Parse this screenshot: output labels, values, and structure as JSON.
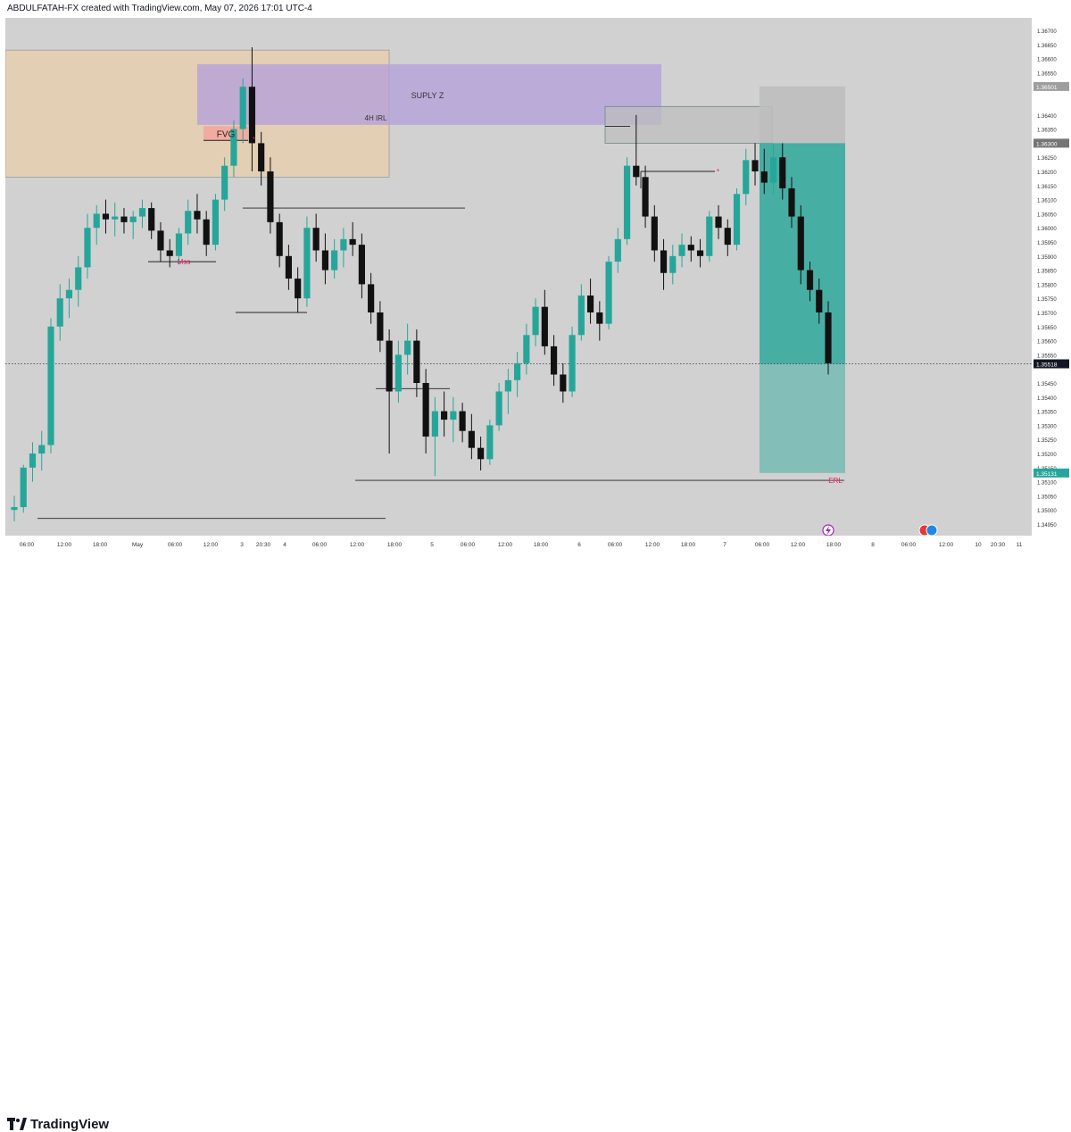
{
  "header": {
    "title": "ABDULFATAH-FX created with TradingView.com, May 07, 2026 17:01 UTC-4"
  },
  "footer": {
    "brand": "TradingView",
    "logo_icon": "tradingview-logo-icon"
  },
  "colors": {
    "background": "#d1d1d1",
    "candle": "#26a69a",
    "candle_down": "#111111",
    "fvg_zone": "#f1a9a0",
    "supply_zone": "#b39ddb",
    "irl_zone": "#e6cfae",
    "target_zone": "#26a69a",
    "stop_zone": "#bdbdbd",
    "label_pink": "#e91e63"
  },
  "chart_data": {
    "type": "candlestick",
    "price_ticks": [
      "1.36700",
      "1.36650",
      "1.36600",
      "1.36550",
      "1.36400",
      "1.36350",
      "1.36250",
      "1.36200",
      "1.36150",
      "1.36100",
      "1.36050",
      "1.36000",
      "1.35950",
      "1.35900",
      "1.35850",
      "1.35800",
      "1.35750",
      "1.35700",
      "1.35650",
      "1.35600",
      "1.35550",
      "1.35450",
      "1.35400",
      "1.35350",
      "1.35300",
      "1.35250",
      "1.35200",
      "1.35150",
      "1.35100",
      "1.35050",
      "1.35000",
      "1.34950"
    ],
    "price_badges": [
      {
        "label": "1.36501",
        "style": "gray"
      },
      {
        "label": "1.36300",
        "style": "gray-dark"
      },
      {
        "label": "1.35518",
        "style": "dark"
      },
      {
        "label": "1.35131",
        "style": "green"
      }
    ],
    "time_ticks": [
      "06:00",
      "12:00",
      "18:00",
      "May",
      "06:00",
      "12:00",
      "3",
      "20:30",
      "4",
      "06:00",
      "12:00",
      "18:00",
      "5",
      "06:00",
      "12:00",
      "18:00",
      "6",
      "06:00",
      "12:00",
      "18:00",
      "7",
      "06:00",
      "12:00",
      "18:00",
      "8",
      "06:00",
      "12:00",
      "10",
      "20:30",
      "11"
    ],
    "annotations": [
      {
        "text": "FVG",
        "kind": "zone-label"
      },
      {
        "text": "SUPLY Z",
        "kind": "zone-label"
      },
      {
        "text": "4H IRL",
        "kind": "zone-label"
      },
      {
        "text": "Mss",
        "kind": "structure"
      },
      {
        "text": "ERL",
        "kind": "liquidity"
      }
    ],
    "zones": [
      {
        "name": "4H IRL",
        "low": 1.3618,
        "high": 1.3663
      },
      {
        "name": "SUPLY Z",
        "low": 1.36365,
        "high": 1.3658
      },
      {
        "name": "FVG",
        "low": 1.3631,
        "high": 1.3636
      },
      {
        "name": "stop",
        "low": 1.363,
        "high": 1.36501
      },
      {
        "name": "target",
        "low": 1.35131,
        "high": 1.363
      }
    ],
    "levels": [
      {
        "name": "ERL",
        "price": 1.35105
      },
      {
        "name": "current",
        "price": 1.35518
      },
      {
        "name": "low-sweep",
        "price": 1.3497
      }
    ],
    "ohlc": [
      [
        1.35,
        1.3505,
        1.3496,
        1.3501
      ],
      [
        1.3501,
        1.3516,
        1.3499,
        1.3515
      ],
      [
        1.3515,
        1.3524,
        1.351,
        1.352
      ],
      [
        1.352,
        1.3528,
        1.3514,
        1.3523
      ],
      [
        1.3523,
        1.3568,
        1.352,
        1.3565
      ],
      [
        1.3565,
        1.358,
        1.356,
        1.3575
      ],
      [
        1.3575,
        1.3582,
        1.3568,
        1.3578
      ],
      [
        1.3578,
        1.359,
        1.3572,
        1.3586
      ],
      [
        1.3586,
        1.3605,
        1.3582,
        1.36
      ],
      [
        1.36,
        1.3608,
        1.3594,
        1.3605
      ],
      [
        1.3605,
        1.361,
        1.3598,
        1.3603
      ],
      [
        1.3603,
        1.3609,
        1.3597,
        1.3604
      ],
      [
        1.3604,
        1.3607,
        1.3598,
        1.3602
      ],
      [
        1.3602,
        1.3606,
        1.3596,
        1.3604
      ],
      [
        1.3604,
        1.361,
        1.36,
        1.3607
      ],
      [
        1.3607,
        1.3609,
        1.3596,
        1.3599
      ],
      [
        1.3599,
        1.3602,
        1.3588,
        1.3592
      ],
      [
        1.3592,
        1.3596,
        1.3586,
        1.359
      ],
      [
        1.359,
        1.36,
        1.3587,
        1.3598
      ],
      [
        1.3598,
        1.361,
        1.3594,
        1.3606
      ],
      [
        1.3606,
        1.3612,
        1.3598,
        1.3603
      ],
      [
        1.3603,
        1.3606,
        1.359,
        1.3594
      ],
      [
        1.3594,
        1.3612,
        1.3592,
        1.361
      ],
      [
        1.361,
        1.3625,
        1.3606,
        1.3622
      ],
      [
        1.3622,
        1.3638,
        1.3618,
        1.3635
      ],
      [
        1.3635,
        1.3653,
        1.363,
        1.365
      ],
      [
        1.365,
        1.3664,
        1.362,
        1.363
      ],
      [
        1.363,
        1.3634,
        1.3615,
        1.362
      ],
      [
        1.362,
        1.3625,
        1.3598,
        1.3602
      ],
      [
        1.3602,
        1.3605,
        1.3586,
        1.359
      ],
      [
        1.359,
        1.3594,
        1.3578,
        1.3582
      ],
      [
        1.3582,
        1.3586,
        1.357,
        1.3575
      ],
      [
        1.3575,
        1.3604,
        1.3572,
        1.36
      ],
      [
        1.36,
        1.3605,
        1.3588,
        1.3592
      ],
      [
        1.3592,
        1.3598,
        1.358,
        1.3585
      ],
      [
        1.3585,
        1.3596,
        1.3582,
        1.3592
      ],
      [
        1.3592,
        1.36,
        1.3586,
        1.3596
      ],
      [
        1.3596,
        1.3602,
        1.359,
        1.3594
      ],
      [
        1.3594,
        1.3598,
        1.3575,
        1.358
      ],
      [
        1.358,
        1.3584,
        1.3566,
        1.357
      ],
      [
        1.357,
        1.3574,
        1.3556,
        1.356
      ],
      [
        1.356,
        1.3564,
        1.352,
        1.3542
      ],
      [
        1.3542,
        1.356,
        1.3538,
        1.3555
      ],
      [
        1.3555,
        1.3566,
        1.3548,
        1.356
      ],
      [
        1.356,
        1.3564,
        1.354,
        1.3545
      ],
      [
        1.3545,
        1.355,
        1.352,
        1.3526
      ],
      [
        1.3526,
        1.354,
        1.3512,
        1.3535
      ],
      [
        1.3535,
        1.3542,
        1.3526,
        1.3532
      ],
      [
        1.3532,
        1.354,
        1.3524,
        1.3535
      ],
      [
        1.3535,
        1.3538,
        1.3524,
        1.3528
      ],
      [
        1.3528,
        1.3534,
        1.3518,
        1.3522
      ],
      [
        1.3522,
        1.3526,
        1.3514,
        1.3518
      ],
      [
        1.3518,
        1.3532,
        1.3516,
        1.353
      ],
      [
        1.353,
        1.3545,
        1.3528,
        1.3542
      ],
      [
        1.3542,
        1.355,
        1.3534,
        1.3546
      ],
      [
        1.3546,
        1.3556,
        1.354,
        1.3552
      ],
      [
        1.3552,
        1.3566,
        1.3548,
        1.3562
      ],
      [
        1.3562,
        1.3575,
        1.3558,
        1.3572
      ],
      [
        1.3572,
        1.3578,
        1.3555,
        1.3558
      ],
      [
        1.3558,
        1.3562,
        1.3544,
        1.3548
      ],
      [
        1.3548,
        1.3552,
        1.3538,
        1.3542
      ],
      [
        1.3542,
        1.3565,
        1.354,
        1.3562
      ],
      [
        1.3562,
        1.358,
        1.356,
        1.3576
      ],
      [
        1.3576,
        1.3582,
        1.3566,
        1.357
      ],
      [
        1.357,
        1.3574,
        1.356,
        1.3566
      ],
      [
        1.3566,
        1.359,
        1.3564,
        1.3588
      ],
      [
        1.3588,
        1.36,
        1.3584,
        1.3596
      ],
      [
        1.3596,
        1.3625,
        1.3594,
        1.3622
      ],
      [
        1.3622,
        1.364,
        1.3615,
        1.3618
      ],
      [
        1.3618,
        1.3622,
        1.36,
        1.3604
      ],
      [
        1.3604,
        1.3608,
        1.3588,
        1.3592
      ],
      [
        1.3592,
        1.3596,
        1.3578,
        1.3584
      ],
      [
        1.3584,
        1.3594,
        1.358,
        1.359
      ],
      [
        1.359,
        1.3598,
        1.3586,
        1.3594
      ],
      [
        1.3594,
        1.3597,
        1.3588,
        1.3592
      ],
      [
        1.3592,
        1.3596,
        1.3586,
        1.359
      ],
      [
        1.359,
        1.3606,
        1.3588,
        1.3604
      ],
      [
        1.3604,
        1.3608,
        1.3596,
        1.36
      ],
      [
        1.36,
        1.3603,
        1.359,
        1.3594
      ],
      [
        1.3594,
        1.3614,
        1.3592,
        1.3612
      ],
      [
        1.3612,
        1.3628,
        1.3608,
        1.3624
      ],
      [
        1.3624,
        1.363,
        1.3615,
        1.362
      ],
      [
        1.362,
        1.3628,
        1.3612,
        1.3616
      ],
      [
        1.3616,
        1.363,
        1.3612,
        1.3625
      ],
      [
        1.3625,
        1.363,
        1.361,
        1.3614
      ],
      [
        1.3614,
        1.3618,
        1.36,
        1.3604
      ],
      [
        1.3604,
        1.3608,
        1.358,
        1.3585
      ],
      [
        1.3585,
        1.3588,
        1.3574,
        1.3578
      ],
      [
        1.3578,
        1.3582,
        1.3566,
        1.357
      ],
      [
        1.357,
        1.3574,
        1.3548,
        1.3552
      ]
    ]
  }
}
